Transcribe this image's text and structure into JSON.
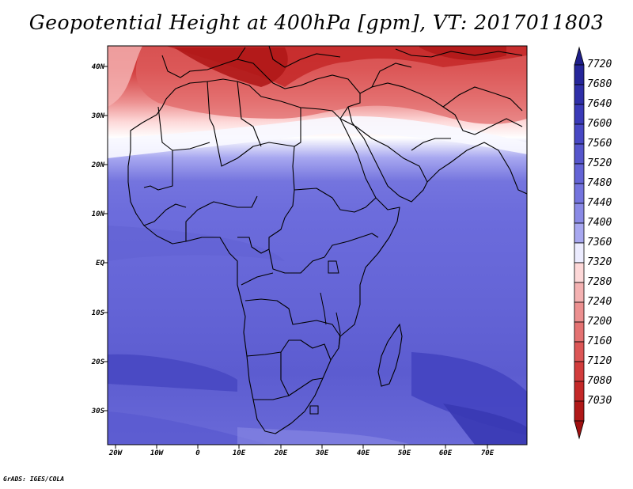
{
  "title": "Geopotential Height at 400hPa [gpm], VT: 2017011803",
  "credit": "GrADS: IGES/COLA",
  "map": {
    "region": "Africa",
    "lon_range": [
      -25,
      80
    ],
    "lat_range": [
      -37,
      45
    ],
    "lat_ticks": [
      {
        "label": "40N"
      },
      {
        "label": "30N"
      },
      {
        "label": "20N"
      },
      {
        "label": "10N"
      },
      {
        "label": "EQ"
      },
      {
        "label": "10S"
      },
      {
        "label": "20S"
      },
      {
        "label": "30S"
      }
    ],
    "lon_ticks": [
      {
        "label": "20W"
      },
      {
        "label": "10W"
      },
      {
        "label": "0"
      },
      {
        "label": "10E"
      },
      {
        "label": "20E"
      },
      {
        "label": "30E"
      },
      {
        "label": "40E"
      },
      {
        "label": "50E"
      },
      {
        "label": "60E"
      },
      {
        "label": "70E"
      }
    ]
  },
  "colorbar": {
    "levels": [
      "7720",
      "7680",
      "7640",
      "7600",
      "7560",
      "7520",
      "7480",
      "7440",
      "7400",
      "7360",
      "7320",
      "7280",
      "7240",
      "7200",
      "7160",
      "7120",
      "7080",
      "7030"
    ],
    "colors": [
      "#26269a",
      "#2f2fa8",
      "#3a3ab8",
      "#4848c4",
      "#5656cc",
      "#6464d6",
      "#7474de",
      "#8a8ae6",
      "#a8a8f0",
      "#ececff",
      "#fdd8d8",
      "#f4b2b2",
      "#ec9090",
      "#e47272",
      "#dc5656",
      "#d23c3c",
      "#c42828",
      "#b01818"
    ]
  }
}
